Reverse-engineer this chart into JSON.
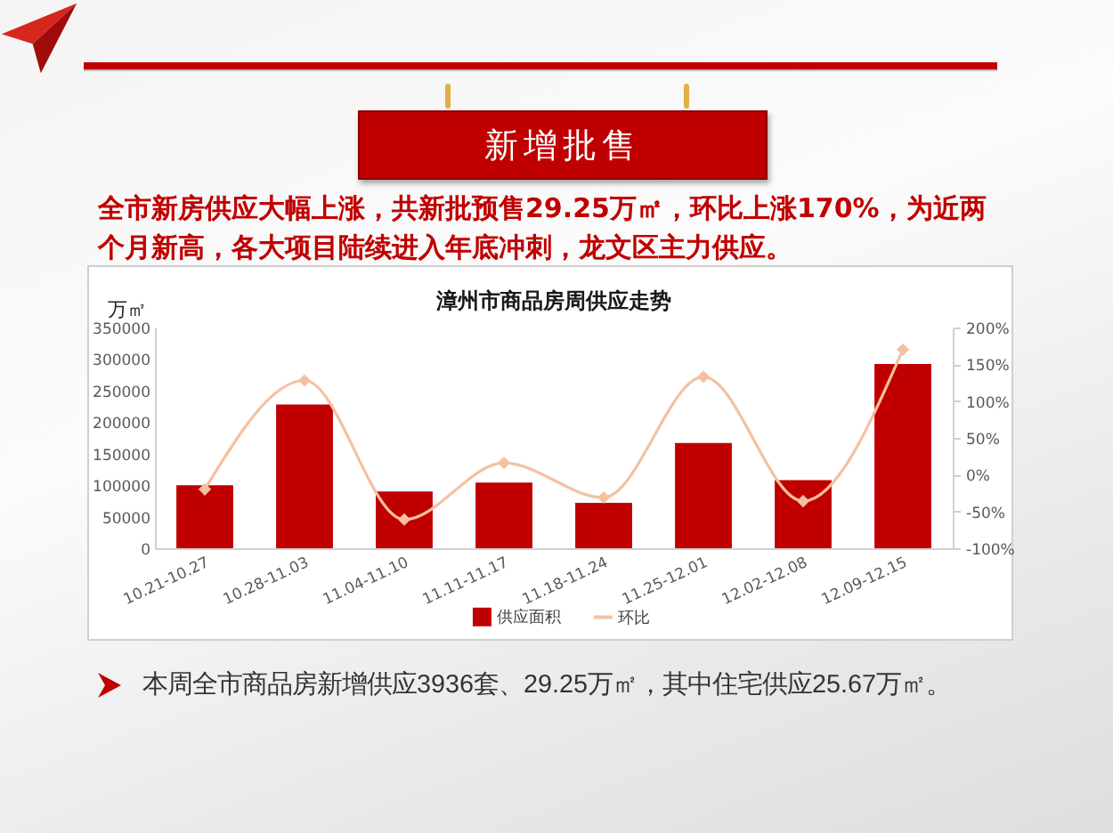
{
  "chart_data": {
    "type": "bar",
    "title": "漳州市商品房周供应走势",
    "ylabel": "万㎡",
    "categories": [
      "10.21-10.27",
      "10.28-11.03",
      "11.04-11.10",
      "11.11-11.17",
      "11.18-11.24",
      "11.25-12.01",
      "12.02-12.08",
      "12.09-12.15"
    ],
    "series": [
      {
        "name": "供应面积",
        "color": "#c00000",
        "values": [
          100000,
          228000,
          90000,
          104000,
          72000,
          167000,
          108000,
          292000
        ]
      },
      {
        "name": "环比",
        "type": "line",
        "axis": "y2",
        "color": "#f4c1a0",
        "values": [
          -20,
          128,
          -61,
          16,
          -31,
          133,
          -36,
          170
        ]
      }
    ],
    "ylim": [
      0,
      350000
    ],
    "yticks": [
      0,
      50000,
      100000,
      150000,
      200000,
      250000,
      300000,
      350000
    ],
    "y2lim": [
      -100,
      200
    ],
    "y2ticks": [
      {
        "value": -100,
        "label": "-100%"
      },
      {
        "value": -50,
        "label": "-50%"
      },
      {
        "value": 0,
        "label": "0%"
      },
      {
        "value": 50,
        "label": "50%"
      },
      {
        "value": 100,
        "label": "100%"
      },
      {
        "value": 150,
        "label": "150%"
      },
      {
        "value": 200,
        "label": "200%"
      }
    ],
    "grid": false,
    "legend": "bottom",
    "marker": "diamond",
    "line_style": "solid",
    "annotations": [
      "新增批售",
      "全市新房供应大幅上涨，共新批预售29.25万㎡，环比上涨170%，为近两个月新高，各大项目陆续进入年底冲刺，龙文区主力供应。",
      "本周全市商品房新增供应3936套、29.25万㎡，其中住宅供应25.67万㎡。"
    ]
  }
}
